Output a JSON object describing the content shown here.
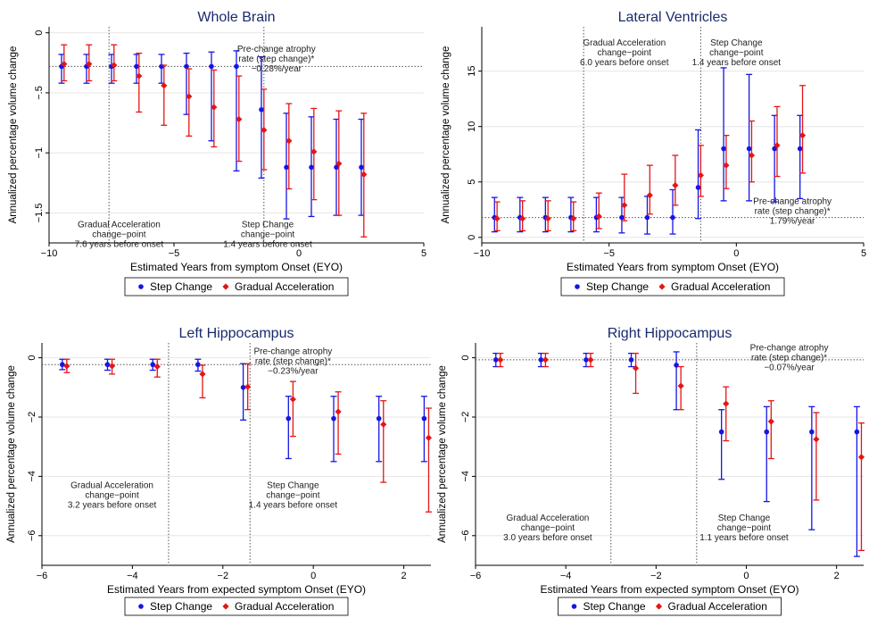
{
  "colors": {
    "step": "#1515e6",
    "gradual": "#e61515",
    "title": "#1a2a6c",
    "grid": "#e6e6e6",
    "axis": "#000000",
    "vline": "#555555",
    "hline": "#555555"
  },
  "legend": {
    "items": [
      {
        "label": "Step Change",
        "color": "#1515e6",
        "marker": "circle"
      },
      {
        "label": "Gradual Acceleration",
        "color": "#e61515",
        "marker": "diamond"
      }
    ]
  },
  "chart_data": [
    {
      "type": "scatter",
      "title": "Whole Brain",
      "xlabel": "Estimated Years from symptom Onset (EYO)",
      "ylabel": "Annualized percentage volume change",
      "xlim": [
        -10,
        5
      ],
      "ylim": [
        -1.75,
        0.05
      ],
      "xticks": [
        -10,
        -5,
        0,
        5
      ],
      "yticks": [
        0,
        -0.5,
        -1,
        -1.5
      ],
      "ytick_labels": [
        "0",
        "-.5",
        "-1",
        "-1.5"
      ],
      "grid": true,
      "legend_position": "bottom",
      "hline": -0.28,
      "vlines": [
        -7.6,
        -1.4
      ],
      "annotations": [
        {
          "lines": [
            "Pre-change atrophy",
            "rate (step change)*",
            "-0.28%/year"
          ],
          "x": -0.9,
          "y": -0.16
        },
        {
          "lines": [
            "Gradual Acceleration",
            "change-point",
            "7.6 years before onset"
          ],
          "x": -7.2,
          "y": -1.62
        },
        {
          "lines": [
            "Step Change",
            "change-point",
            "1.4 years before onset"
          ],
          "x": -1.25,
          "y": -1.62
        }
      ],
      "series": [
        {
          "name": "Step Change",
          "x": [
            -9.5,
            -8.5,
            -7.5,
            -6.5,
            -5.5,
            -4.5,
            -3.5,
            -2.5,
            -1.5,
            -0.5,
            0.5,
            1.5,
            2.5
          ],
          "y": [
            -0.28,
            -0.28,
            -0.28,
            -0.28,
            -0.28,
            -0.28,
            -0.28,
            -0.28,
            -0.64,
            -1.12,
            -1.12,
            -1.12,
            -1.12
          ],
          "lo": [
            -0.42,
            -0.42,
            -0.42,
            -0.42,
            -0.42,
            -0.68,
            -0.9,
            -1.15,
            -1.21,
            -1.55,
            -1.53,
            -1.52,
            -1.52
          ],
          "hi": [
            -0.18,
            -0.18,
            -0.18,
            -0.18,
            -0.18,
            -0.17,
            -0.16,
            -0.15,
            -0.2,
            -0.67,
            -0.7,
            -0.72,
            -0.72
          ]
        },
        {
          "name": "Gradual Acceleration",
          "x": [
            -9.4,
            -8.4,
            -7.4,
            -6.4,
            -5.4,
            -4.4,
            -3.4,
            -2.4,
            -1.4,
            -0.4,
            0.6,
            1.6,
            2.6
          ],
          "y": [
            -0.26,
            -0.26,
            -0.27,
            -0.36,
            -0.44,
            -0.53,
            -0.62,
            -0.72,
            -0.81,
            -0.9,
            -0.99,
            -1.09,
            -1.18
          ],
          "lo": [
            -0.4,
            -0.4,
            -0.4,
            -0.66,
            -0.77,
            -0.86,
            -0.95,
            -1.07,
            -1.14,
            -1.3,
            -1.39,
            -1.52,
            -1.7
          ],
          "hi": [
            -0.1,
            -0.1,
            -0.1,
            -0.17,
            -0.27,
            -0.3,
            -0.31,
            -0.36,
            -0.47,
            -0.59,
            -0.63,
            -0.65,
            -0.67
          ]
        }
      ]
    },
    {
      "type": "scatter",
      "title": "Lateral Ventricles",
      "xlabel": "Estimated Years from symptom Onset (EYO)",
      "ylabel": "Annualized percentage volume change",
      "xlim": [
        -10,
        5
      ],
      "ylim": [
        -0.5,
        19
      ],
      "xticks": [
        -10,
        -5,
        0,
        5
      ],
      "yticks": [
        0,
        5,
        10,
        15
      ],
      "ytick_labels": [
        "0",
        "5",
        "10",
        "15"
      ],
      "grid": true,
      "legend_position": "bottom",
      "hline": 1.79,
      "vlines": [
        -6.0,
        -1.4
      ],
      "annotations": [
        {
          "lines": [
            "Gradual Acceleration",
            "change-point",
            "6.0 years before onset"
          ],
          "x": -4.4,
          "y": 17.3
        },
        {
          "lines": [
            "Step Change",
            "change-point",
            "1.4 years before onset"
          ],
          "x": 0.0,
          "y": 17.3
        },
        {
          "lines": [
            "Pre-change atrophy",
            "rate (step change)*",
            "1.79%/year"
          ],
          "x": 2.2,
          "y": 3.0
        }
      ],
      "series": [
        {
          "name": "Step Change",
          "x": [
            -9.5,
            -8.5,
            -7.5,
            -6.5,
            -5.5,
            -4.5,
            -3.5,
            -2.5,
            -1.5,
            -0.5,
            0.5,
            1.5,
            2.5
          ],
          "y": [
            1.79,
            1.79,
            1.79,
            1.79,
            1.79,
            1.79,
            1.79,
            1.79,
            4.5,
            8.0,
            8.0,
            8.0,
            8.0
          ],
          "lo": [
            0.5,
            0.5,
            0.5,
            0.5,
            0.5,
            0.4,
            0.3,
            0.3,
            1.7,
            3.3,
            3.3,
            3.2,
            3.5
          ],
          "hi": [
            3.6,
            3.6,
            3.6,
            3.6,
            3.6,
            3.6,
            3.7,
            4.3,
            9.7,
            15.3,
            14.7,
            11.0,
            11.0
          ]
        },
        {
          "name": "Gradual Acceleration",
          "x": [
            -9.4,
            -8.4,
            -7.4,
            -6.4,
            -5.4,
            -4.4,
            -3.4,
            -2.4,
            -1.4,
            -0.4,
            0.6,
            1.6,
            2.6
          ],
          "y": [
            1.7,
            1.7,
            1.7,
            1.7,
            1.9,
            2.9,
            3.8,
            4.7,
            5.6,
            6.5,
            7.4,
            8.3,
            9.2
          ],
          "lo": [
            0.6,
            0.6,
            0.6,
            0.6,
            0.8,
            1.5,
            2.1,
            2.9,
            3.7,
            4.4,
            5.0,
            5.5,
            5.8
          ],
          "hi": [
            3.2,
            3.3,
            3.3,
            3.2,
            4.0,
            5.7,
            6.5,
            7.4,
            8.3,
            9.2,
            10.5,
            11.8,
            13.7
          ]
        }
      ]
    },
    {
      "type": "scatter",
      "title": "Left Hippocampus",
      "xlabel": "Estimated Years from expected symptom Onset (EYO)",
      "ylabel": "Annualized percentage volume change",
      "xlim": [
        -6,
        2.6
      ],
      "ylim": [
        -7.0,
        0.5
      ],
      "xticks": [
        -6,
        -4,
        -2,
        0,
        2
      ],
      "yticks": [
        0,
        -2,
        -4,
        -6
      ],
      "ytick_labels": [
        "0",
        "-2",
        "-4",
        "-6"
      ],
      "grid": true,
      "legend_position": "bottom",
      "hline": -0.23,
      "vlines": [
        -3.2,
        -1.4
      ],
      "annotations": [
        {
          "lines": [
            "Pre-change atrophy",
            "rate (step change)*",
            "-0.23%/year"
          ],
          "x": -0.45,
          "y": 0.12
        },
        {
          "lines": [
            "Gradual Acceleration",
            "change-point",
            "3.2 years before onset"
          ],
          "x": -4.45,
          "y": -4.4
        },
        {
          "lines": [
            "Step Change",
            "change-point",
            "1.4 years before onset"
          ],
          "x": -0.45,
          "y": -4.4
        }
      ],
      "series": [
        {
          "name": "Step Change",
          "x": [
            -5.55,
            -4.55,
            -3.55,
            -2.55,
            -1.55,
            -0.55,
            0.45,
            1.45,
            2.45
          ],
          "y": [
            -0.23,
            -0.23,
            -0.23,
            -0.23,
            -1.0,
            -2.05,
            -2.05,
            -2.05,
            -2.05
          ],
          "lo": [
            -0.4,
            -0.42,
            -0.42,
            -0.45,
            -2.1,
            -3.4,
            -3.5,
            -3.5,
            -3.5
          ],
          "hi": [
            -0.05,
            -0.05,
            -0.05,
            -0.05,
            -0.2,
            -1.3,
            -1.3,
            -1.3,
            -1.3
          ]
        },
        {
          "name": "Gradual Acceleration",
          "x": [
            -5.45,
            -4.45,
            -3.45,
            -2.45,
            -1.45,
            -0.45,
            0.55,
            1.55,
            2.55
          ],
          "y": [
            -0.28,
            -0.28,
            -0.3,
            -0.55,
            -0.98,
            -1.4,
            -1.82,
            -2.25,
            -2.7
          ],
          "lo": [
            -0.5,
            -0.55,
            -0.65,
            -1.35,
            -1.75,
            -2.65,
            -3.25,
            -4.2,
            -5.2
          ],
          "hi": [
            -0.05,
            -0.05,
            -0.05,
            -0.25,
            -0.2,
            -0.8,
            -1.15,
            -1.45,
            -1.7
          ]
        }
      ]
    },
    {
      "type": "scatter",
      "title": "Right Hippocampus",
      "xlabel": "Estimated Years from expected symptom Onset (EYO)",
      "ylabel": "Annualized percentage volume change",
      "xlim": [
        -6,
        2.6
      ],
      "ylim": [
        -7.0,
        0.5
      ],
      "xticks": [
        -6,
        -4,
        -2,
        0,
        2
      ],
      "yticks": [
        0,
        -2,
        -4,
        -6
      ],
      "ytick_labels": [
        "0",
        "-2",
        "-4",
        "-6"
      ],
      "grid": true,
      "legend_position": "bottom",
      "hline": -0.07,
      "vlines": [
        -3.0,
        -1.1
      ],
      "annotations": [
        {
          "lines": [
            "Pre-change atrophy",
            "rate (step change)*",
            "-0.07%/year"
          ],
          "x": 0.95,
          "y": 0.25
        },
        {
          "lines": [
            "Gradual Acceleration",
            "change-point",
            "3.0 years before onset"
          ],
          "x": -4.4,
          "y": -5.5
        },
        {
          "lines": [
            "Step Change",
            "change-point",
            "1.1 years before onset"
          ],
          "x": -0.05,
          "y": -5.5
        }
      ],
      "series": [
        {
          "name": "Step Change",
          "x": [
            -5.55,
            -4.55,
            -3.55,
            -2.55,
            -1.55,
            -0.55,
            0.45,
            1.45,
            2.45
          ],
          "y": [
            -0.07,
            -0.07,
            -0.07,
            -0.07,
            -0.25,
            -2.5,
            -2.5,
            -2.5,
            -2.5
          ],
          "lo": [
            -0.3,
            -0.3,
            -0.3,
            -0.3,
            -1.75,
            -4.1,
            -4.85,
            -5.8,
            -6.7
          ],
          "hi": [
            0.15,
            0.15,
            0.15,
            0.15,
            0.2,
            -1.75,
            -1.65,
            -1.65,
            -1.65
          ]
        },
        {
          "name": "Gradual Acceleration",
          "x": [
            -5.45,
            -4.45,
            -3.45,
            -2.45,
            -1.45,
            -0.45,
            0.55,
            1.55,
            2.55
          ],
          "y": [
            -0.07,
            -0.07,
            -0.07,
            -0.35,
            -0.95,
            -1.55,
            -2.15,
            -2.75,
            -3.35
          ],
          "lo": [
            -0.3,
            -0.3,
            -0.3,
            -1.2,
            -1.75,
            -2.8,
            -3.4,
            -4.8,
            -6.5
          ],
          "hi": [
            0.15,
            0.15,
            0.15,
            0.15,
            -0.3,
            -0.98,
            -1.45,
            -1.85,
            -2.2
          ]
        }
      ]
    }
  ]
}
